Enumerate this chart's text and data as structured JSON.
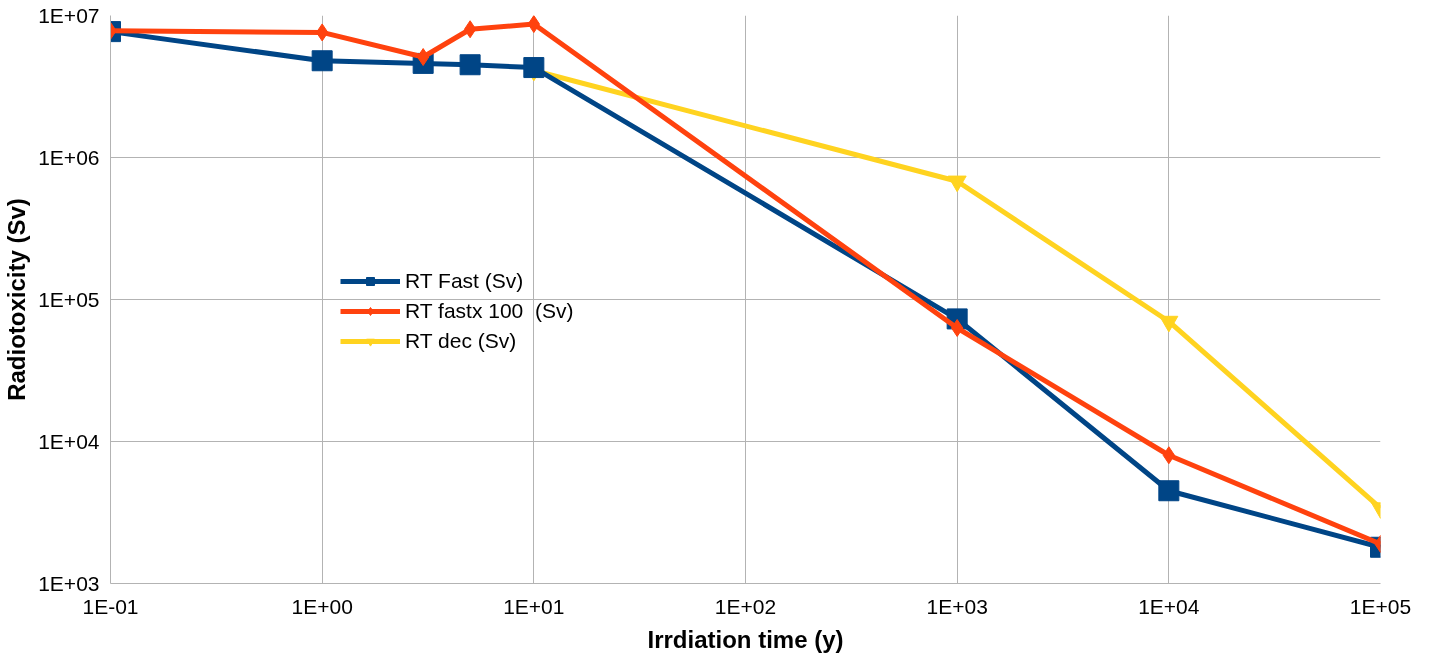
{
  "chart_data": {
    "type": "line",
    "xlabel": "Irrdiation time (y)",
    "ylabel": "Radiotoxicity (Sv)",
    "x": [
      0.1,
      1,
      3,
      5,
      10,
      1000,
      10000,
      100000
    ],
    "series": [
      {
        "name": "RT Fast (Sv)",
        "color": "#004586",
        "marker": "square",
        "values": [
          7700000,
          4800000,
          4600000,
          4500000,
          4300000,
          73000,
          4500,
          1800
        ]
      },
      {
        "name": "RT fastx 100  (Sv)",
        "color": "#ff420e",
        "marker": "diamond",
        "values": [
          7800000,
          7600000,
          5100000,
          8000000,
          8700000,
          63000,
          8000,
          1900
        ]
      },
      {
        "name": "RT dec (Sv)",
        "color": "#ffd320",
        "marker": "triangle",
        "values": [
          null,
          null,
          null,
          null,
          4100000,
          680000,
          70000,
          3400
        ]
      }
    ],
    "log": "xy",
    "xlim": [
      0.1,
      100000
    ],
    "ylim": [
      1000,
      10000000
    ],
    "xticks": [
      {
        "value": 0.1,
        "label": "1E-01"
      },
      {
        "value": 1,
        "label": "1E+00"
      },
      {
        "value": 10,
        "label": "1E+01"
      },
      {
        "value": 100,
        "label": "1E+02"
      },
      {
        "value": 1000,
        "label": "1E+03"
      },
      {
        "value": 10000,
        "label": "1E+04"
      },
      {
        "value": 100000,
        "label": "1E+05"
      }
    ],
    "yticks": [
      {
        "value": 1000,
        "label": "1E+03"
      },
      {
        "value": 10000,
        "label": "1E+04"
      },
      {
        "value": 100000,
        "label": "1E+05"
      },
      {
        "value": 1000000,
        "label": "1E+06"
      },
      {
        "value": 10000000,
        "label": "1E+07"
      }
    ],
    "grid": true,
    "legend": "left",
    "line_style": "solid"
  }
}
